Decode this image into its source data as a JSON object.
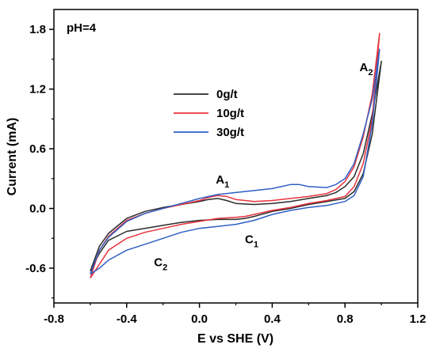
{
  "chart_data": {
    "type": "line",
    "xlabel": "E vs SHE (V)",
    "ylabel": "Current (mA)",
    "xlim": [
      -0.8,
      1.2
    ],
    "ylim": [
      -0.95,
      2.0
    ],
    "xticks": [
      -0.8,
      -0.4,
      0.0,
      0.4,
      0.8,
      1.2
    ],
    "xtick_labels": [
      "-0.8",
      "-0.4",
      "0.0",
      "0.4",
      "0.8",
      "1.2"
    ],
    "yticks": [
      -0.6,
      0.0,
      0.6,
      1.2,
      1.8
    ],
    "ytick_labels": [
      "-0.6",
      "0.0",
      "0.6",
      "1.2",
      "1.8"
    ],
    "grid": false,
    "legend_position": "upper-center",
    "condition_label": "pH=4",
    "annotations": [
      {
        "id": "A2",
        "main": "A",
        "sub": "2",
        "x": 0.88,
        "y": 1.38
      },
      {
        "id": "A1",
        "main": "A",
        "sub": "1",
        "x": 0.09,
        "y": 0.25
      },
      {
        "id": "C1",
        "main": "C",
        "sub": "1",
        "x": 0.25,
        "y": -0.35
      },
      {
        "id": "C2",
        "main": "C",
        "sub": "2",
        "x": -0.25,
        "y": -0.58
      }
    ],
    "series": [
      {
        "name": "0g/t",
        "color": "#2b2b2b",
        "upper": [
          [
            -0.6,
            -0.63
          ],
          [
            -0.55,
            -0.38
          ],
          [
            -0.5,
            -0.25
          ],
          [
            -0.4,
            -0.1
          ],
          [
            -0.3,
            -0.03
          ],
          [
            -0.2,
            0.01
          ],
          [
            -0.1,
            0.04
          ],
          [
            0.0,
            0.07
          ],
          [
            0.05,
            0.09
          ],
          [
            0.1,
            0.1
          ],
          [
            0.15,
            0.08
          ],
          [
            0.2,
            0.05
          ],
          [
            0.3,
            0.04
          ],
          [
            0.4,
            0.05
          ],
          [
            0.5,
            0.07
          ],
          [
            0.6,
            0.1
          ],
          [
            0.7,
            0.13
          ],
          [
            0.75,
            0.16
          ],
          [
            0.8,
            0.22
          ],
          [
            0.85,
            0.32
          ],
          [
            0.9,
            0.55
          ],
          [
            0.95,
            0.95
          ],
          [
            1.0,
            1.48
          ]
        ],
        "lower": [
          [
            0.95,
            0.75
          ],
          [
            0.9,
            0.35
          ],
          [
            0.85,
            0.17
          ],
          [
            0.8,
            0.1
          ],
          [
            0.7,
            0.07
          ],
          [
            0.6,
            0.04
          ],
          [
            0.5,
            0.0
          ],
          [
            0.4,
            -0.03
          ],
          [
            0.3,
            -0.08
          ],
          [
            0.25,
            -0.1
          ],
          [
            0.2,
            -0.11
          ],
          [
            0.1,
            -0.11
          ],
          [
            0.0,
            -0.12
          ],
          [
            -0.1,
            -0.14
          ],
          [
            -0.2,
            -0.17
          ],
          [
            -0.3,
            -0.2
          ],
          [
            -0.4,
            -0.23
          ],
          [
            -0.5,
            -0.32
          ],
          [
            -0.55,
            -0.45
          ],
          [
            -0.6,
            -0.63
          ]
        ]
      },
      {
        "name": "10g/t",
        "color": "#e8323c",
        "upper": [
          [
            -0.6,
            -0.7
          ],
          [
            -0.55,
            -0.42
          ],
          [
            -0.5,
            -0.28
          ],
          [
            -0.4,
            -0.12
          ],
          [
            -0.3,
            -0.05
          ],
          [
            -0.2,
            0.0
          ],
          [
            -0.1,
            0.04
          ],
          [
            0.0,
            0.08
          ],
          [
            0.05,
            0.11
          ],
          [
            0.1,
            0.13
          ],
          [
            0.15,
            0.12
          ],
          [
            0.2,
            0.09
          ],
          [
            0.3,
            0.07
          ],
          [
            0.4,
            0.08
          ],
          [
            0.5,
            0.1
          ],
          [
            0.6,
            0.12
          ],
          [
            0.7,
            0.15
          ],
          [
            0.75,
            0.19
          ],
          [
            0.8,
            0.27
          ],
          [
            0.85,
            0.42
          ],
          [
            0.9,
            0.72
          ],
          [
            0.95,
            1.15
          ],
          [
            0.99,
            1.76
          ]
        ],
        "lower": [
          [
            0.95,
            0.9
          ],
          [
            0.9,
            0.45
          ],
          [
            0.85,
            0.22
          ],
          [
            0.8,
            0.12
          ],
          [
            0.7,
            0.08
          ],
          [
            0.6,
            0.05
          ],
          [
            0.5,
            0.01
          ],
          [
            0.4,
            -0.02
          ],
          [
            0.3,
            -0.06
          ],
          [
            0.25,
            -0.08
          ],
          [
            0.2,
            -0.09
          ],
          [
            0.1,
            -0.1
          ],
          [
            0.0,
            -0.13
          ],
          [
            -0.1,
            -0.16
          ],
          [
            -0.2,
            -0.2
          ],
          [
            -0.3,
            -0.24
          ],
          [
            -0.4,
            -0.3
          ],
          [
            -0.5,
            -0.42
          ],
          [
            -0.55,
            -0.56
          ],
          [
            -0.6,
            -0.7
          ]
        ]
      },
      {
        "name": "30g/t",
        "color": "#2f5fc4",
        "upper": [
          [
            -0.6,
            -0.66
          ],
          [
            -0.55,
            -0.42
          ],
          [
            -0.5,
            -0.29
          ],
          [
            -0.4,
            -0.13
          ],
          [
            -0.3,
            -0.05
          ],
          [
            -0.2,
            0.0
          ],
          [
            -0.1,
            0.05
          ],
          [
            0.0,
            0.1
          ],
          [
            0.05,
            0.12
          ],
          [
            0.1,
            0.14
          ],
          [
            0.2,
            0.16
          ],
          [
            0.3,
            0.18
          ],
          [
            0.4,
            0.2
          ],
          [
            0.45,
            0.22
          ],
          [
            0.5,
            0.24
          ],
          [
            0.55,
            0.24
          ],
          [
            0.6,
            0.22
          ],
          [
            0.7,
            0.21
          ],
          [
            0.75,
            0.24
          ],
          [
            0.8,
            0.3
          ],
          [
            0.85,
            0.45
          ],
          [
            0.9,
            0.75
          ],
          [
            0.95,
            1.1
          ],
          [
            0.99,
            1.6
          ]
        ],
        "lower": [
          [
            0.95,
            0.85
          ],
          [
            0.9,
            0.32
          ],
          [
            0.85,
            0.13
          ],
          [
            0.8,
            0.07
          ],
          [
            0.7,
            0.03
          ],
          [
            0.6,
            0.01
          ],
          [
            0.5,
            -0.02
          ],
          [
            0.4,
            -0.06
          ],
          [
            0.3,
            -0.12
          ],
          [
            0.2,
            -0.16
          ],
          [
            0.1,
            -0.18
          ],
          [
            0.0,
            -0.2
          ],
          [
            -0.1,
            -0.24
          ],
          [
            -0.2,
            -0.3
          ],
          [
            -0.3,
            -0.36
          ],
          [
            -0.4,
            -0.42
          ],
          [
            -0.5,
            -0.52
          ],
          [
            -0.55,
            -0.6
          ],
          [
            -0.6,
            -0.66
          ]
        ]
      }
    ]
  }
}
